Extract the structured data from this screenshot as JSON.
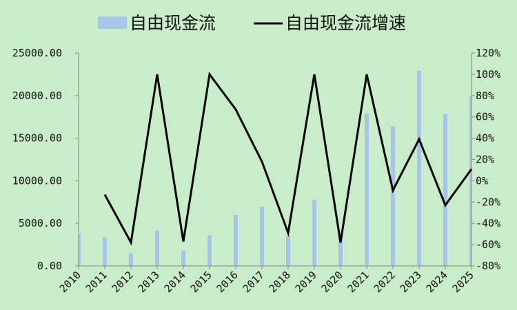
{
  "chart_data": {
    "type": "bar",
    "categories": [
      "2010",
      "2011",
      "2012",
      "2013",
      "2014",
      "2015",
      "2016",
      "2017",
      "2018",
      "2019",
      "2020",
      "2021",
      "2022",
      "2023",
      "2024",
      "2025"
    ],
    "series": [
      {
        "name": "自由现金流",
        "type": "bar",
        "axis": "left",
        "color": "#a9c4ea",
        "values": [
          3800,
          3350,
          1500,
          4150,
          1800,
          3600,
          6000,
          6950,
          3550,
          7750,
          3300,
          17900,
          16400,
          22900,
          17850,
          19900
        ]
      },
      {
        "name": "自由现金流增速",
        "type": "line",
        "axis": "right",
        "color": "#000000",
        "values": [
          null,
          -13,
          -58,
          100,
          -57,
          100,
          67,
          18,
          -49,
          100,
          -58,
          100,
          -9,
          39,
          -23,
          11
        ]
      }
    ],
    "y_left": {
      "lim": [
        0,
        25000
      ],
      "ticks": [
        "0.00",
        "5000.00",
        "10000.00",
        "15000.00",
        "20000.00",
        "25000.00"
      ]
    },
    "y_right": {
      "lim": [
        -80,
        120
      ],
      "ticks": [
        "-80%",
        "-60%",
        "-40%",
        "-20%",
        "0%",
        "20%",
        "40%",
        "60%",
        "80%",
        "100%",
        "120%"
      ]
    },
    "legend_position": "top",
    "grid": false
  }
}
